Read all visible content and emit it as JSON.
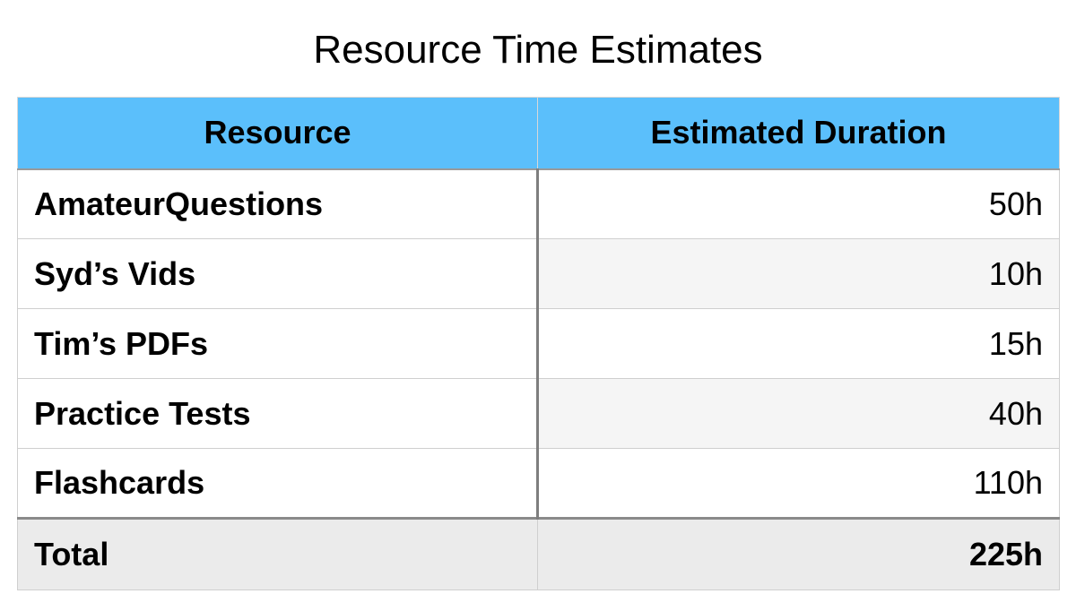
{
  "title": "Resource Time Estimates",
  "table": {
    "headers": [
      "Resource",
      "Estimated Duration"
    ],
    "rows": [
      {
        "resource": "AmateurQuestions",
        "duration": "50h"
      },
      {
        "resource": "Syd’s Vids",
        "duration": "10h"
      },
      {
        "resource": "Tim’s PDFs",
        "duration": "15h"
      },
      {
        "resource": "Practice Tests",
        "duration": "40h"
      },
      {
        "resource": "Flashcards",
        "duration": "110h"
      }
    ],
    "footer": {
      "label": "Total",
      "value": "225h"
    }
  },
  "colors": {
    "header_background": "#5bbffb",
    "footer_background": "#ebebeb",
    "alt_row_background": "#f5f5f5"
  }
}
